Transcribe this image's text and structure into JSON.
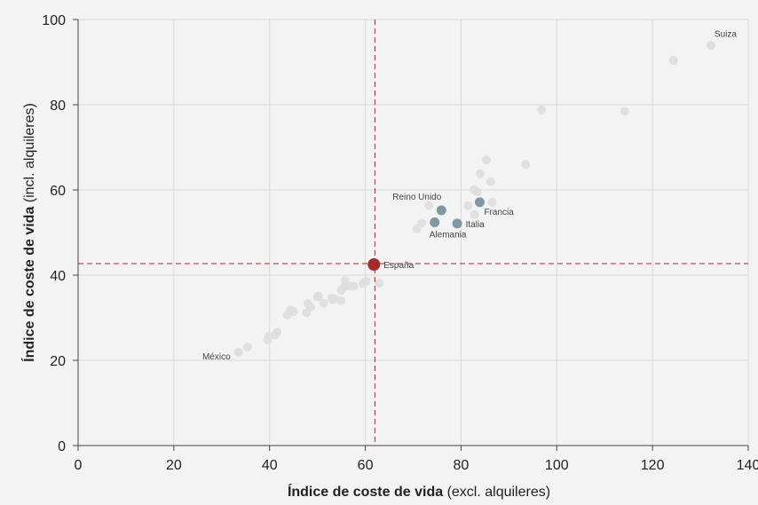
{
  "chart_data": {
    "type": "scatter",
    "title": "",
    "xlabel_bold": "Índice de coste de vida",
    "xlabel_rest": "(excl. alquileres)",
    "ylabel_bold": "Índice de coste de vida",
    "ylabel_rest": "(incl. alquileres)",
    "xlim": [
      0,
      140
    ],
    "ylim": [
      0,
      100
    ],
    "xticks": [
      0,
      20,
      40,
      60,
      80,
      100,
      120,
      140
    ],
    "yticks": [
      0,
      20,
      40,
      60,
      80,
      100
    ],
    "grid": true,
    "colors": {
      "background": "#f3f3f3",
      "grid": "#d9d9d9",
      "axis": "#444444",
      "other": "#dedede",
      "highlight": "#7f98a6",
      "spain": "#a52a2a",
      "refline": "#a52a2a"
    },
    "reference": {
      "x": 62,
      "y": 42.7
    },
    "labeled_points": [
      {
        "label": "España",
        "x": 61.8,
        "y": 42.5,
        "group": "spain",
        "label_pos": "right"
      },
      {
        "label": "Reino Unido",
        "x": 75.9,
        "y": 55.2,
        "group": "highlight",
        "label_pos": "upper-left"
      },
      {
        "label": "Francia",
        "x": 83.9,
        "y": 57.1,
        "group": "highlight",
        "label_pos": "lower-right"
      },
      {
        "label": "Alemania",
        "x": 74.5,
        "y": 52.4,
        "group": "highlight",
        "label_pos": "below"
      },
      {
        "label": "Italia",
        "x": 79.2,
        "y": 52.1,
        "group": "highlight",
        "label_pos": "right"
      },
      {
        "label": "México",
        "x": 33.5,
        "y": 21.9,
        "group": "other",
        "label_pos": "left"
      },
      {
        "label": "Suiza",
        "x": 132.2,
        "y": 93.9,
        "group": "other",
        "label_pos": "upper-right"
      }
    ],
    "other_points": [
      [
        35.4,
        23.1
      ],
      [
        39.6,
        24.7
      ],
      [
        39.8,
        25.7
      ],
      [
        41.2,
        26.0
      ],
      [
        41.6,
        26.6
      ],
      [
        43.7,
        30.6
      ],
      [
        44.4,
        31.8
      ],
      [
        45.0,
        31.4
      ],
      [
        47.7,
        31.2
      ],
      [
        48.0,
        33.3
      ],
      [
        48.6,
        32.5
      ],
      [
        50.0,
        34.9
      ],
      [
        50.2,
        35.1
      ],
      [
        51.3,
        33.4
      ],
      [
        53.0,
        34.6
      ],
      [
        53.2,
        34.2
      ],
      [
        53.6,
        34.4
      ],
      [
        54.9,
        34.0
      ],
      [
        55.0,
        36.4
      ],
      [
        55.7,
        37.3
      ],
      [
        55.8,
        38.7
      ],
      [
        56.6,
        37.4
      ],
      [
        57.6,
        37.4
      ],
      [
        59.5,
        38.0
      ],
      [
        60.2,
        38.6
      ],
      [
        62.9,
        38.1
      ],
      [
        70.8,
        50.9
      ],
      [
        71.8,
        52.2
      ],
      [
        73.3,
        56.3
      ],
      [
        81.5,
        56.3
      ],
      [
        82.7,
        60.1
      ],
      [
        82.8,
        54.2
      ],
      [
        83.4,
        59.5
      ],
      [
        84.0,
        63.8
      ],
      [
        85.3,
        67.0
      ],
      [
        86.2,
        61.9
      ],
      [
        86.5,
        57.1
      ],
      [
        93.5,
        66.0
      ],
      [
        96.8,
        78.8
      ],
      [
        114.2,
        78.5
      ],
      [
        124.4,
        90.4
      ]
    ]
  }
}
